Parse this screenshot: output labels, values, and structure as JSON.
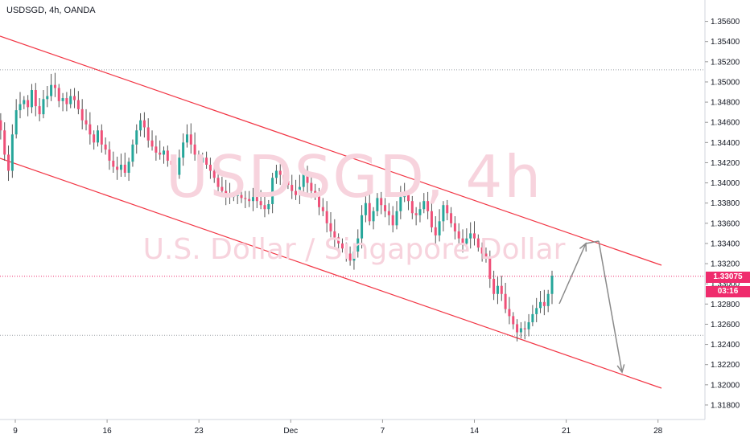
{
  "header": {
    "title": "USDSGD, 4h, OANDA"
  },
  "watermark": {
    "symbol": "USDSGD, 4h",
    "description": "U.S. Dollar / Singapore Dollar"
  },
  "price_tag": {
    "value": "1.33075",
    "countdown": "03:16"
  },
  "colors": {
    "up": "#26a69a",
    "down": "#ef5078",
    "channel": "#f23645",
    "arrow": "#8a8a8a",
    "tag": "#ef2c6d",
    "hline": "#9aa0a6",
    "priceline": "#ef2c6d"
  },
  "chart_data": {
    "type": "candlestick",
    "x_ticks": [
      "9",
      "16",
      "23",
      "Dec",
      "7",
      "14",
      "21",
      "28"
    ],
    "y_ticks": [
      "1.35600",
      "1.35400",
      "1.35200",
      "1.35000",
      "1.34800",
      "1.34600",
      "1.34400",
      "1.34200",
      "1.34000",
      "1.33800",
      "1.33600",
      "1.33400",
      "1.33200",
      "1.33000",
      "1.32800",
      "1.32600",
      "1.32400",
      "1.32200",
      "1.32000",
      "1.31800"
    ],
    "ylim": [
      1.3172,
      1.3574
    ],
    "x_tick_days": [
      9,
      16,
      23,
      30,
      37,
      44,
      51,
      58
    ],
    "candles_days": [
      7.0,
      28.0
    ],
    "horizontal_levels": [
      1.3512,
      1.3249
    ],
    "last_price": 1.33075,
    "closes": [
      1.3498,
      1.3488,
      1.3462,
      1.3452,
      1.3428,
      1.3412,
      1.3448,
      1.3472,
      1.3478,
      1.3482,
      1.3475,
      1.3492,
      1.3476,
      1.3468,
      1.3483,
      1.3486,
      1.3497,
      1.3494,
      1.3481,
      1.3484,
      1.3478,
      1.3486,
      1.3482,
      1.3473,
      1.3462,
      1.3458,
      1.3448,
      1.344,
      1.3452,
      1.3438,
      1.3433,
      1.3422,
      1.3416,
      1.3413,
      1.3418,
      1.341,
      1.3421,
      1.3438,
      1.3452,
      1.3462,
      1.3455,
      1.3442,
      1.3436,
      1.343,
      1.3428,
      1.3432,
      1.3422,
      1.3418,
      1.3408,
      1.3425,
      1.344,
      1.3448,
      1.3438,
      1.3428,
      1.342,
      1.3425,
      1.3418,
      1.3412,
      1.3405,
      1.3396,
      1.3392,
      1.3388,
      1.3386,
      1.3387,
      1.3388,
      1.3385,
      1.3384,
      1.3382,
      1.3386,
      1.3382,
      1.3378,
      1.3374,
      1.3379,
      1.3405,
      1.3412,
      1.3408,
      1.3402,
      1.3398,
      1.3392,
      1.3388,
      1.3396,
      1.3412,
      1.34,
      1.3392,
      1.3387,
      1.3376,
      1.3372,
      1.336,
      1.3352,
      1.3346,
      1.334,
      1.3335,
      1.333,
      1.3323,
      1.3332,
      1.3345,
      1.3368,
      1.338,
      1.3362,
      1.3372,
      1.3385,
      1.3378,
      1.3372,
      1.3368,
      1.3358,
      1.3372,
      1.3386,
      1.3388,
      1.3382,
      1.337,
      1.3368,
      1.3374,
      1.3382,
      1.3372,
      1.3356,
      1.3348,
      1.3362,
      1.3378,
      1.337,
      1.336,
      1.3352,
      1.3345,
      1.334,
      1.3345,
      1.335,
      1.3345,
      1.3336,
      1.333,
      1.3326,
      1.3305,
      1.329,
      1.3298,
      1.329,
      1.3275,
      1.3268,
      1.326,
      1.3252,
      1.3256,
      1.3255,
      1.3262,
      1.327,
      1.3276,
      1.3282,
      1.3278,
      1.329,
      1.3308
    ]
  }
}
